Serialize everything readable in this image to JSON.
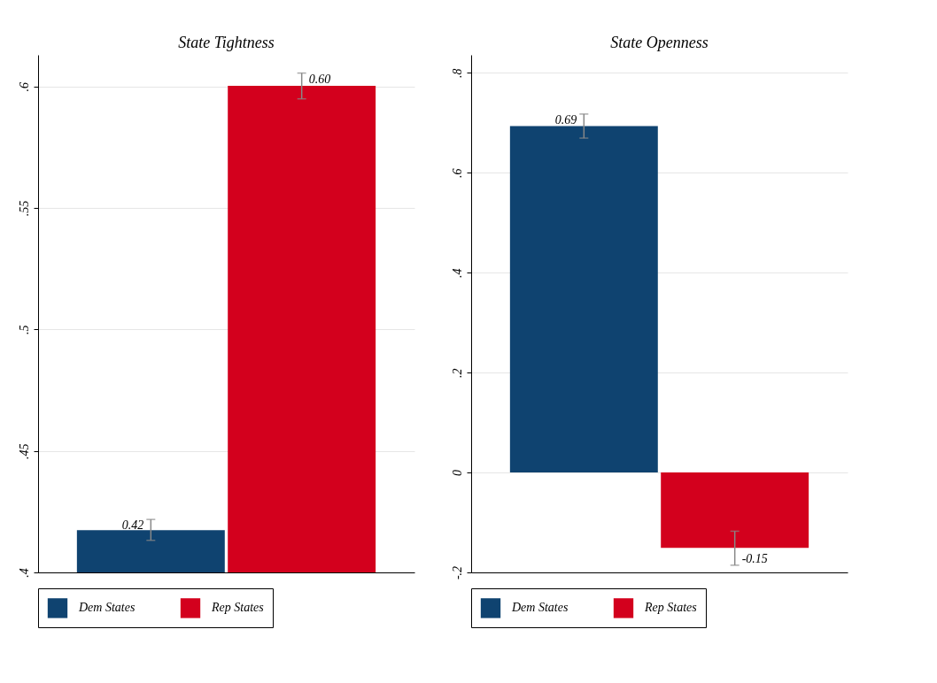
{
  "chart_data": [
    {
      "type": "bar",
      "title": "State Tightness",
      "categories": [
        null
      ],
      "legend": "bottom",
      "grid": "y",
      "tick_labels": "y",
      "ylim": [
        0.4,
        0.613
      ],
      "yticks": [
        {
          "value": 0.4,
          "label": ".4"
        },
        {
          "value": 0.45,
          "label": ".45"
        },
        {
          "value": 0.5,
          "label": ".5"
        },
        {
          "value": 0.55,
          "label": ".55"
        },
        {
          "value": 0.6,
          "label": ".6"
        }
      ],
      "series": [
        {
          "name": "Dem States",
          "color": "#0f4370",
          "values": [
            0.4174
          ],
          "errors": [
            [
              0.4132,
              0.4218
            ]
          ],
          "value_labels": [
            "0.42"
          ]
        },
        {
          "name": "Rep States",
          "color": "#d3001d",
          "values": [
            0.6003
          ],
          "errors": [
            [
              0.5949,
              0.6055
            ]
          ],
          "value_labels": [
            "0.60"
          ]
        }
      ]
    },
    {
      "type": "bar",
      "title": "State Openness",
      "categories": [
        null
      ],
      "legend": "bottom",
      "grid": "y",
      "tick_labels": "y",
      "ylim": [
        -0.2,
        0.836
      ],
      "yticks": [
        {
          "value": -0.2,
          "label": "-.2"
        },
        0,
        {
          "value": 0.2,
          "label": ".2"
        },
        {
          "value": 0.4,
          "label": ".4"
        },
        {
          "value": 0.6,
          "label": ".6"
        },
        {
          "value": 0.8,
          "label": ".8"
        }
      ],
      "series": [
        {
          "name": "Dem States",
          "color": "#0f4370",
          "values": [
            0.6935
          ],
          "errors": [
            [
              0.6694,
              0.7175
            ]
          ],
          "value_labels": [
            "0.69"
          ]
        },
        {
          "name": "Rep States",
          "color": "#d3001d",
          "values": [
            -0.151
          ],
          "errors": [
            [
              -0.1856,
              -0.1175
            ]
          ],
          "value_labels": [
            "-0.15"
          ]
        }
      ]
    }
  ]
}
